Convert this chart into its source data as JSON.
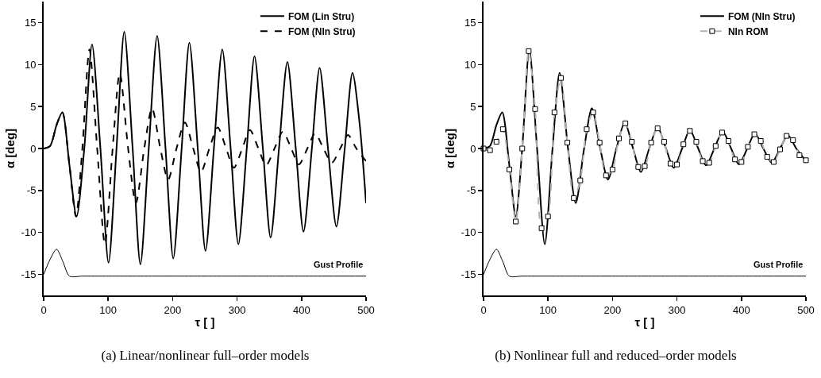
{
  "chart_data": [
    {
      "type": "line",
      "xlabel": "τ [ ]",
      "ylabel": "α [deg]",
      "xlim": [
        0,
        500
      ],
      "ylim": [
        -17.5,
        17.5
      ],
      "xticks": [
        0,
        100,
        200,
        300,
        400,
        500
      ],
      "yticks": [
        -15,
        -10,
        -5,
        0,
        5,
        10,
        15
      ],
      "grid": false,
      "legend": "top right",
      "marker": "none",
      "title": "(a) Linear/nonlinear full–order models",
      "annotations": [
        "Gust Profile"
      ],
      "series": [
        {
          "name": "FOM (Lin Stru)",
          "color": "#000000",
          "line_style": "solid",
          "x": [
            0,
            10,
            20,
            29,
            40,
            51,
            63,
            75,
            88,
            100.6,
            113,
            125,
            138,
            150,
            163,
            176,
            189,
            201,
            214,
            226,
            239,
            251,
            264,
            277,
            290,
            302,
            315,
            327,
            340,
            352,
            365,
            378,
            391,
            403,
            416,
            428,
            441,
            454,
            467,
            479,
            490,
            500
          ],
          "values": [
            0,
            0.3,
            2.8,
            4.3,
            -2,
            -8.1,
            0,
            12.4,
            0,
            -13.6,
            0,
            13.9,
            0,
            -13.8,
            0,
            13.4,
            0,
            -13.1,
            0,
            12.6,
            0,
            -12.2,
            0,
            11.8,
            0,
            -11.4,
            0,
            11,
            0,
            -10.6,
            0,
            10.3,
            0,
            -9.9,
            0,
            9.6,
            0,
            -9.3,
            0,
            9,
            3,
            -6.5
          ]
        },
        {
          "name": "FOM (Nln Stru)",
          "color": "#000000",
          "line_style": "dashed",
          "x": [
            0,
            10,
            20,
            29,
            40,
            50,
            60,
            71,
            83,
            95,
            107,
            118,
            131,
            143,
            156,
            168,
            181,
            193,
            206,
            219,
            232,
            244,
            257,
            270,
            283,
            295,
            308,
            320,
            333,
            345,
            358,
            371,
            384,
            396,
            409,
            421,
            434,
            447,
            460,
            472,
            485,
            500
          ],
          "values": [
            0,
            0.3,
            2.8,
            4.3,
            -2,
            -8.1,
            0,
            11.8,
            0,
            -11.4,
            0,
            9,
            0,
            -6.5,
            0,
            4.8,
            0,
            -3.7,
            0,
            3.1,
            0,
            -2.8,
            0,
            2.5,
            0,
            -2.3,
            0,
            2.2,
            0,
            -2,
            0,
            2,
            0,
            -1.9,
            0,
            1.8,
            0,
            -1.7,
            0,
            1.6,
            0,
            -1.5
          ]
        },
        {
          "color": "#000000",
          "line_style": "solid",
          "x": [
            0,
            10,
            20,
            30,
            40,
            60,
            100,
            150,
            200,
            250,
            300,
            350,
            400,
            450,
            500
          ],
          "values": [
            -15,
            -13.2,
            -12,
            -13.5,
            -15.2,
            -15.2,
            -15.2,
            -15.2,
            -15.2,
            -15.2,
            -15.2,
            -15.2,
            -15.2,
            -15.2,
            -15.2
          ]
        }
      ]
    },
    {
      "type": "line",
      "xlabel": "τ [ ]",
      "ylabel": "α [deg]",
      "xlim": [
        0,
        500
      ],
      "ylim": [
        -17.5,
        17.5
      ],
      "xticks": [
        0,
        100,
        200,
        300,
        400,
        500
      ],
      "yticks": [
        -15,
        -10,
        -5,
        0,
        5,
        10,
        15
      ],
      "grid": false,
      "legend": "top right",
      "marker": "none",
      "title": "(b) Nonlinear full and reduced–order models",
      "annotations": [
        "Gust Profile"
      ],
      "series": [
        {
          "name": "FOM (Nln Stru)",
          "color": "#000000",
          "line_style": "solid",
          "x": [
            0,
            10,
            20,
            29,
            40,
            50,
            60,
            71,
            83,
            95,
            107,
            118,
            131,
            143,
            156,
            168,
            181,
            193,
            206,
            219,
            232,
            244,
            257,
            270,
            283,
            295,
            308,
            320,
            333,
            345,
            358,
            371,
            384,
            396,
            409,
            421,
            434,
            447,
            460,
            472,
            485,
            500
          ],
          "values": [
            0,
            0.3,
            2.8,
            4.3,
            -2,
            -8.1,
            0,
            11.8,
            0,
            -11.4,
            0,
            9,
            0,
            -6.5,
            0,
            4.8,
            0,
            -3.7,
            0,
            3.1,
            0,
            -2.8,
            0,
            2.5,
            0,
            -2.3,
            0,
            2.2,
            0,
            -2,
            0,
            2,
            0,
            -1.9,
            0,
            1.8,
            0,
            -1.7,
            0,
            1.6,
            0,
            -1.5
          ]
        },
        {
          "name": "Nln ROM",
          "color": "#b4b4b4",
          "line_style": "dashed",
          "marker": "square",
          "x": [
            0,
            10,
            20,
            30,
            40,
            50,
            60,
            70,
            80,
            90,
            100,
            110,
            120,
            130,
            140,
            150,
            160,
            170,
            180,
            190,
            200,
            210,
            220,
            230,
            240,
            250,
            260,
            270,
            280,
            290,
            300,
            310,
            320,
            330,
            340,
            350,
            360,
            370,
            380,
            390,
            400,
            410,
            420,
            430,
            440,
            450,
            460,
            470,
            480,
            490,
            500
          ],
          "values": [
            0,
            -0.2,
            0.8,
            2.3,
            -2.5,
            -8.7,
            0,
            11.6,
            4.7,
            -9.5,
            -8.1,
            4.3,
            8.4,
            0.7,
            -5.9,
            -3.8,
            2.3,
            4.3,
            0.7,
            -3.2,
            -2.5,
            1.2,
            3,
            0.8,
            -2.2,
            -2.1,
            0.7,
            2.4,
            0.8,
            -1.8,
            -1.9,
            0.5,
            2.1,
            0.8,
            -1.5,
            -1.7,
            0.3,
            1.9,
            0.9,
            -1.3,
            -1.6,
            0.2,
            1.7,
            0.9,
            -1,
            -1.6,
            -0.1,
            1.5,
            1,
            -0.8,
            -1.4
          ]
        },
        {
          "color": "#000000",
          "line_style": "solid",
          "x": [
            0,
            10,
            20,
            30,
            40,
            60,
            100,
            150,
            200,
            250,
            300,
            350,
            400,
            450,
            500
          ],
          "values": [
            -15,
            -13.2,
            -12,
            -13.5,
            -15.2,
            -15.2,
            -15.2,
            -15.2,
            -15.2,
            -15.2,
            -15.2,
            -15.2,
            -15.2,
            -15.2,
            -15.2
          ]
        }
      ]
    }
  ]
}
